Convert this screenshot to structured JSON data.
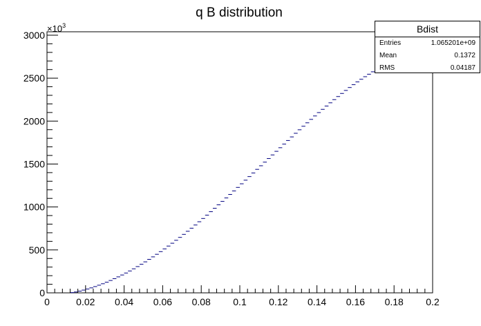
{
  "chart_data": {
    "type": "bar",
    "title": "q B distribution",
    "xlabel": "",
    "ylabel": "",
    "y_multiplier_label": "×10",
    "y_multiplier_exp": "3",
    "xlim": [
      0,
      0.2
    ],
    "ylim": [
      0,
      3040
    ],
    "x_ticks": [
      "0",
      "0.02",
      "0.04",
      "0.06",
      "0.08",
      "0.1",
      "0.12",
      "0.14",
      "0.16",
      "0.18",
      "0.2"
    ],
    "x_tick_values": [
      0,
      0.02,
      0.04,
      0.06,
      0.08,
      0.1,
      0.12,
      0.14,
      0.16,
      0.18,
      0.2
    ],
    "y_ticks": [
      "0",
      "500",
      "1000",
      "1500",
      "2000",
      "2500",
      "3000"
    ],
    "y_tick_values": [
      0,
      500,
      1000,
      1500,
      2000,
      2500,
      3000
    ],
    "grid": false,
    "legend": "none",
    "bin_width": 0.002,
    "bin_start": 0,
    "values": [
      0,
      0,
      0,
      0,
      0,
      0,
      3,
      10,
      20,
      32,
      45,
      58,
      73,
      89,
      106,
      124,
      144,
      165,
      186,
      208,
      231,
      255,
      280,
      306,
      333,
      361,
      390,
      419,
      449,
      480,
      512,
      545,
      578,
      612,
      646,
      681,
      717,
      753,
      790,
      828,
      866,
      905,
      945,
      985,
      1025,
      1065,
      1105,
      1146,
      1187,
      1228,
      1270,
      1312,
      1354,
      1396,
      1438,
      1480,
      1522,
      1564,
      1606,
      1648,
      1690,
      1732,
      1774,
      1816,
      1858,
      1899,
      1940,
      1980,
      2020,
      2060,
      2099,
      2137,
      2175,
      2213,
      2250,
      2286,
      2322,
      2357,
      2391,
      2424,
      2456,
      2487,
      2517,
      2546,
      2574,
      2600,
      2625,
      2648,
      2669,
      2688,
      2705,
      2720,
      2733,
      2744,
      2753,
      2760,
      2766,
      2771,
      2775,
      2778
    ],
    "line_color": "#000080"
  },
  "stats": {
    "name": "Bdist",
    "rows": [
      {
        "label": "Entries",
        "value": "1.065201e+09"
      },
      {
        "label": "Mean",
        "value": "0.1372"
      },
      {
        "label": "RMS",
        "value": "0.04187"
      }
    ]
  }
}
